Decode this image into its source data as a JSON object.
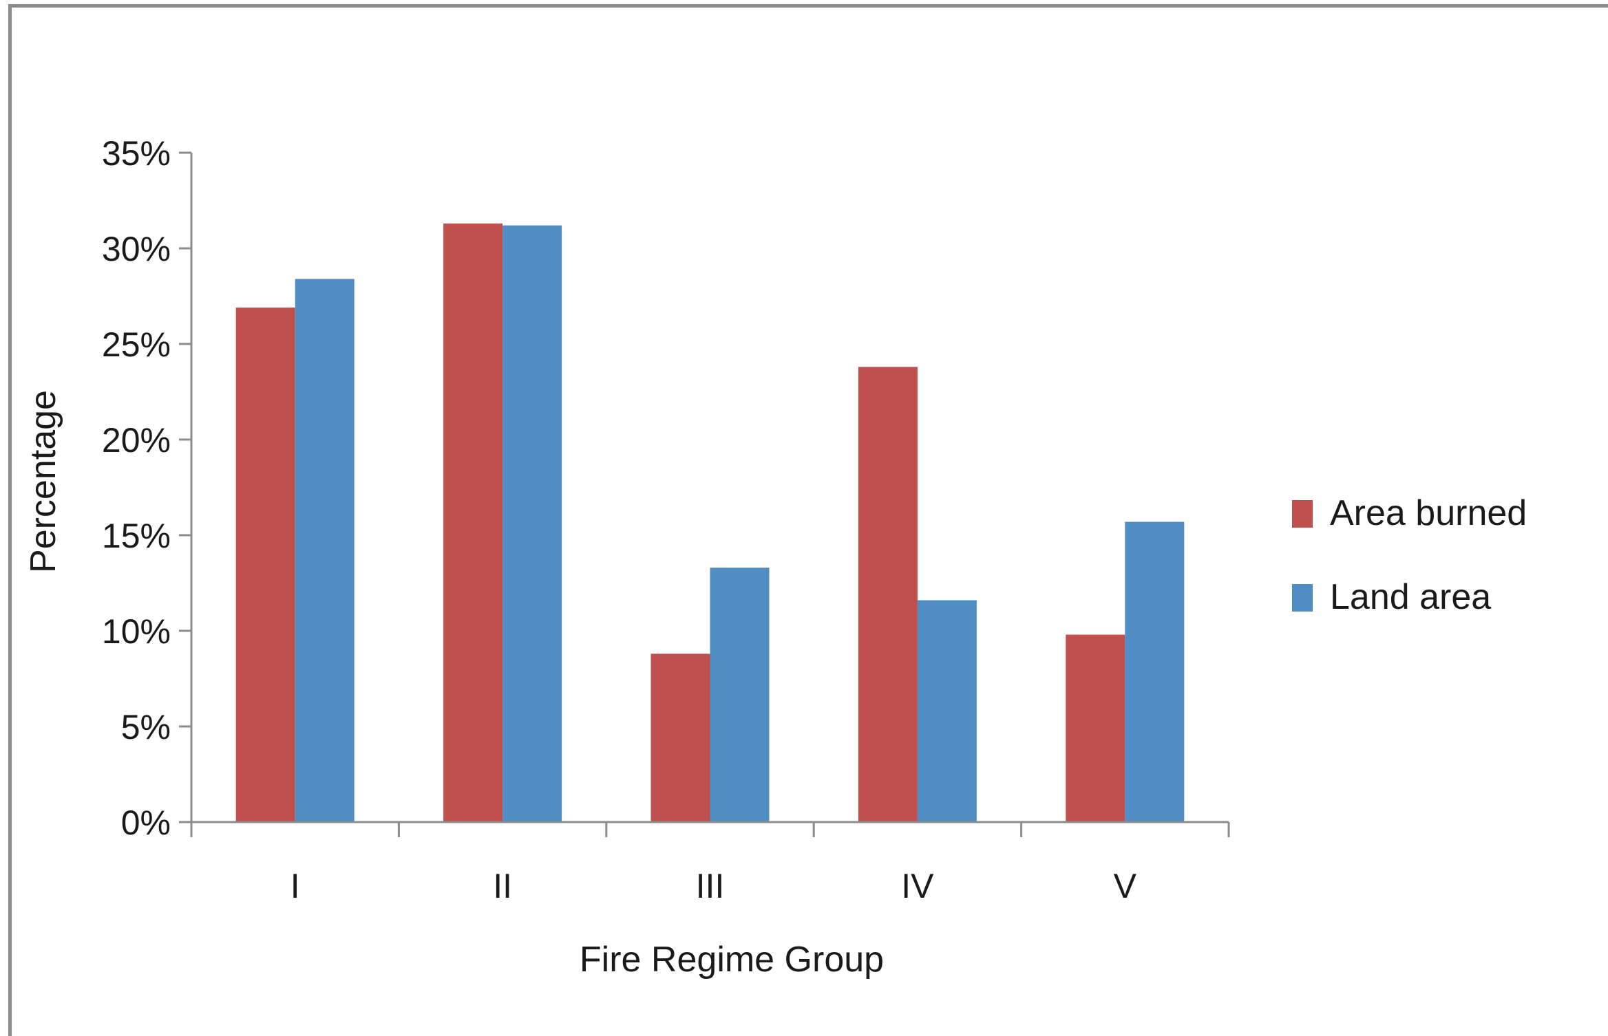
{
  "chart_data": {
    "type": "bar",
    "title": "",
    "xlabel": "Fire Regime Group",
    "ylabel": "Percentage",
    "categories": [
      "I",
      "II",
      "III",
      "IV",
      "V"
    ],
    "series": [
      {
        "name": "Area burned",
        "color": "#c0504d",
        "values": [
          26.9,
          31.3,
          8.8,
          23.8,
          9.8
        ]
      },
      {
        "name": "Land area",
        "color": "#4f8dc2",
        "values": [
          28.4,
          31.2,
          13.3,
          11.6,
          15.7
        ]
      }
    ],
    "ylim": [
      0,
      35
    ],
    "yticks": [
      0,
      5,
      10,
      15,
      20,
      25,
      30,
      35
    ],
    "ytick_labels": [
      "0%",
      "5%",
      "10%",
      "15%",
      "20%",
      "25%",
      "30%",
      "35%"
    ],
    "grid": false,
    "legend_position": "right"
  }
}
